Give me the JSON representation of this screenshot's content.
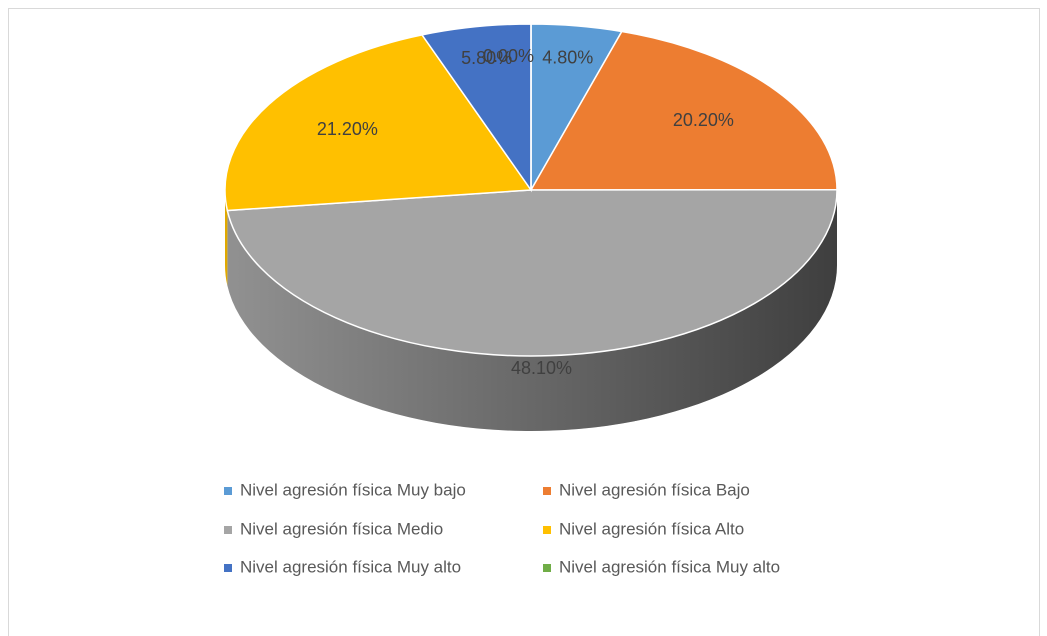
{
  "chart_data": {
    "type": "pie",
    "categories": [
      "Nivel agresión física Muy bajo",
      "Nivel agresión física Bajo",
      "Nivel agresión física Medio",
      "Nivel agresión física Alto",
      "Nivel agresión física Muy alto",
      "Nivel agresión física Muy alto"
    ],
    "values": [
      4.8,
      20.2,
      48.1,
      21.2,
      5.8,
      0.0
    ],
    "value_labels": [
      "4.80%",
      "20.20%",
      "48.10%",
      "21.20%",
      "5.80%",
      "0.00%"
    ],
    "colors": [
      "#5b9bd5",
      "#ed7d31",
      "#a5a5a5",
      "#ffc000",
      "#4472c4",
      "#70ad47"
    ],
    "legend": "bottom"
  }
}
